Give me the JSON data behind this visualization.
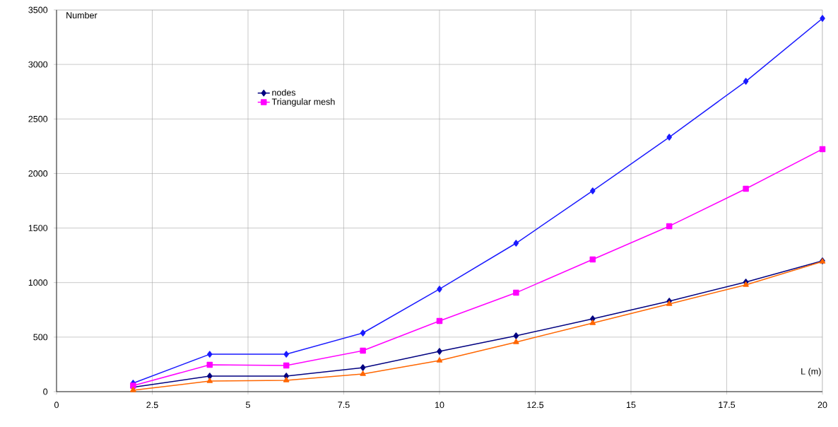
{
  "chart_data": {
    "type": "line",
    "xlabel": "L (m)",
    "ylabel": "Number",
    "x": [
      2,
      4,
      6,
      8,
      10,
      12,
      14,
      16,
      18,
      20
    ],
    "series": [
      {
        "color": "#1a1aff",
        "marker": "diamond",
        "values": [
          78,
          343,
          343,
          538,
          940,
          1361,
          1841,
          2333,
          2845,
          3422
        ]
      },
      {
        "name": "nodes",
        "color": "#000080",
        "marker": "diamond",
        "values": [
          40,
          143,
          143,
          220,
          369,
          512,
          668,
          830,
          1005,
          1199
        ]
      },
      {
        "name": "Triangular mesh",
        "color": "#ff00ff",
        "marker": "square",
        "values": [
          55,
          246,
          240,
          376,
          648,
          907,
          1212,
          1517,
          1860,
          2223
        ]
      },
      {
        "color": "#ff6600",
        "marker": "triangle",
        "values": [
          13,
          97,
          104,
          162,
          285,
          454,
          629,
          804,
          979,
          1192
        ]
      }
    ],
    "xlim": [
      0,
      20
    ],
    "xticks": [
      0,
      2.5,
      5,
      7.5,
      10,
      12.5,
      15,
      17.5,
      20
    ],
    "ylim": [
      0,
      3500
    ],
    "yticks": [
      0,
      500,
      1000,
      1500,
      2000,
      2500,
      3000,
      3500
    ],
    "grid": true,
    "legend": "top left",
    "line_style": "solid"
  }
}
